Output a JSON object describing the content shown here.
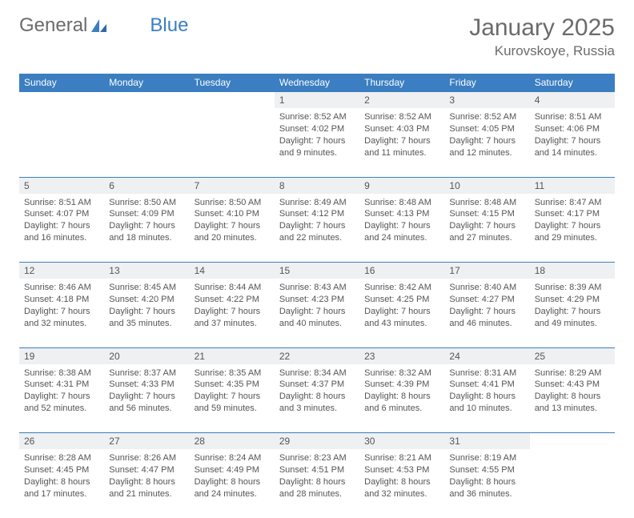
{
  "brand": {
    "part1": "General",
    "part2": "Blue"
  },
  "header": {
    "month": "January 2025",
    "location": "Kurovskoye, Russia"
  },
  "colors": {
    "header_bg": "#3b7ec1",
    "header_text": "#ffffff",
    "daynum_bg": "#eef0f1",
    "row_divider": "#3b7ec1",
    "text": "#555555",
    "logo_gray": "#6b6b6b",
    "logo_blue": "#3b7ec1",
    "background": "#ffffff"
  },
  "typography": {
    "title_fontsize": 30,
    "location_fontsize": 17,
    "dayheader_fontsize": 12,
    "daynum_fontsize": 12,
    "body_fontsize": 11,
    "font_family": "Arial"
  },
  "days_of_week": [
    "Sunday",
    "Monday",
    "Tuesday",
    "Wednesday",
    "Thursday",
    "Friday",
    "Saturday"
  ],
  "weeks": [
    [
      null,
      null,
      null,
      {
        "n": "1",
        "sr": "8:52 AM",
        "ss": "4:02 PM",
        "dl": "7 hours and 9 minutes."
      },
      {
        "n": "2",
        "sr": "8:52 AM",
        "ss": "4:03 PM",
        "dl": "7 hours and 11 minutes."
      },
      {
        "n": "3",
        "sr": "8:52 AM",
        "ss": "4:05 PM",
        "dl": "7 hours and 12 minutes."
      },
      {
        "n": "4",
        "sr": "8:51 AM",
        "ss": "4:06 PM",
        "dl": "7 hours and 14 minutes."
      }
    ],
    [
      {
        "n": "5",
        "sr": "8:51 AM",
        "ss": "4:07 PM",
        "dl": "7 hours and 16 minutes."
      },
      {
        "n": "6",
        "sr": "8:50 AM",
        "ss": "4:09 PM",
        "dl": "7 hours and 18 minutes."
      },
      {
        "n": "7",
        "sr": "8:50 AM",
        "ss": "4:10 PM",
        "dl": "7 hours and 20 minutes."
      },
      {
        "n": "8",
        "sr": "8:49 AM",
        "ss": "4:12 PM",
        "dl": "7 hours and 22 minutes."
      },
      {
        "n": "9",
        "sr": "8:48 AM",
        "ss": "4:13 PM",
        "dl": "7 hours and 24 minutes."
      },
      {
        "n": "10",
        "sr": "8:48 AM",
        "ss": "4:15 PM",
        "dl": "7 hours and 27 minutes."
      },
      {
        "n": "11",
        "sr": "8:47 AM",
        "ss": "4:17 PM",
        "dl": "7 hours and 29 minutes."
      }
    ],
    [
      {
        "n": "12",
        "sr": "8:46 AM",
        "ss": "4:18 PM",
        "dl": "7 hours and 32 minutes."
      },
      {
        "n": "13",
        "sr": "8:45 AM",
        "ss": "4:20 PM",
        "dl": "7 hours and 35 minutes."
      },
      {
        "n": "14",
        "sr": "8:44 AM",
        "ss": "4:22 PM",
        "dl": "7 hours and 37 minutes."
      },
      {
        "n": "15",
        "sr": "8:43 AM",
        "ss": "4:23 PM",
        "dl": "7 hours and 40 minutes."
      },
      {
        "n": "16",
        "sr": "8:42 AM",
        "ss": "4:25 PM",
        "dl": "7 hours and 43 minutes."
      },
      {
        "n": "17",
        "sr": "8:40 AM",
        "ss": "4:27 PM",
        "dl": "7 hours and 46 minutes."
      },
      {
        "n": "18",
        "sr": "8:39 AM",
        "ss": "4:29 PM",
        "dl": "7 hours and 49 minutes."
      }
    ],
    [
      {
        "n": "19",
        "sr": "8:38 AM",
        "ss": "4:31 PM",
        "dl": "7 hours and 52 minutes."
      },
      {
        "n": "20",
        "sr": "8:37 AM",
        "ss": "4:33 PM",
        "dl": "7 hours and 56 minutes."
      },
      {
        "n": "21",
        "sr": "8:35 AM",
        "ss": "4:35 PM",
        "dl": "7 hours and 59 minutes."
      },
      {
        "n": "22",
        "sr": "8:34 AM",
        "ss": "4:37 PM",
        "dl": "8 hours and 3 minutes."
      },
      {
        "n": "23",
        "sr": "8:32 AM",
        "ss": "4:39 PM",
        "dl": "8 hours and 6 minutes."
      },
      {
        "n": "24",
        "sr": "8:31 AM",
        "ss": "4:41 PM",
        "dl": "8 hours and 10 minutes."
      },
      {
        "n": "25",
        "sr": "8:29 AM",
        "ss": "4:43 PM",
        "dl": "8 hours and 13 minutes."
      }
    ],
    [
      {
        "n": "26",
        "sr": "8:28 AM",
        "ss": "4:45 PM",
        "dl": "8 hours and 17 minutes."
      },
      {
        "n": "27",
        "sr": "8:26 AM",
        "ss": "4:47 PM",
        "dl": "8 hours and 21 minutes."
      },
      {
        "n": "28",
        "sr": "8:24 AM",
        "ss": "4:49 PM",
        "dl": "8 hours and 24 minutes."
      },
      {
        "n": "29",
        "sr": "8:23 AM",
        "ss": "4:51 PM",
        "dl": "8 hours and 28 minutes."
      },
      {
        "n": "30",
        "sr": "8:21 AM",
        "ss": "4:53 PM",
        "dl": "8 hours and 32 minutes."
      },
      {
        "n": "31",
        "sr": "8:19 AM",
        "ss": "4:55 PM",
        "dl": "8 hours and 36 minutes."
      },
      null
    ]
  ],
  "labels": {
    "sunrise": "Sunrise:",
    "sunset": "Sunset:",
    "daylight": "Daylight:"
  }
}
